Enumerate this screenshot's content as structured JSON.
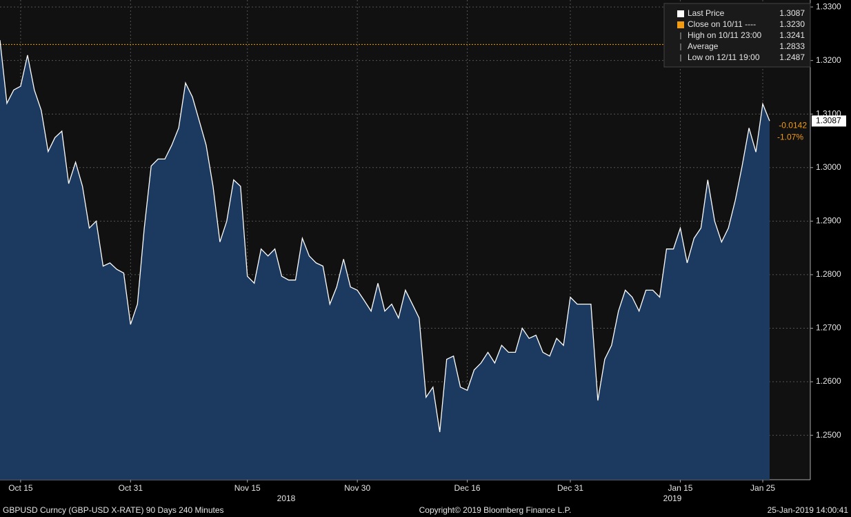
{
  "chart_data": {
    "type": "area",
    "categories": [
      null,
      null,
      null,
      "Oct 15",
      null,
      null,
      null,
      null,
      null,
      null,
      null,
      null,
      null,
      null,
      null,
      null,
      null,
      null,
      null,
      "Oct 31",
      null,
      null,
      null,
      null,
      null,
      null,
      null,
      null,
      null,
      null,
      null,
      null,
      null,
      null,
      null,
      null,
      "Nov 15",
      null,
      null,
      null,
      null,
      null,
      null,
      null,
      null,
      null,
      null,
      null,
      null,
      null,
      null,
      null,
      "Nov 30",
      null,
      null,
      null,
      null,
      null,
      null,
      null,
      null,
      null,
      null,
      null,
      null,
      null,
      null,
      null,
      "Dec 16",
      null,
      null,
      null,
      null,
      null,
      null,
      null,
      null,
      null,
      null,
      null,
      null,
      null,
      null,
      "Dec 31",
      null,
      null,
      null,
      null,
      null,
      null,
      null,
      null,
      null,
      null,
      null,
      null,
      null,
      null,
      null,
      "Jan 15",
      null,
      null,
      null,
      null,
      null,
      null,
      null,
      null,
      null,
      null,
      null,
      "Jan 25",
      null
    ],
    "years": [
      "2018",
      "2019"
    ],
    "series": [
      {
        "name": "Last Price",
        "color": "#ffffff",
        "fill": "#1c3a60",
        "values": [
          1.3238,
          1.312,
          1.3145,
          1.3152,
          1.321,
          1.3145,
          1.3107,
          1.303,
          1.3056,
          1.3068,
          1.297,
          1.301,
          1.2965,
          1.2887,
          1.29,
          1.2816,
          1.2822,
          1.281,
          1.2803,
          1.2707,
          1.2745,
          1.2887,
          1.3003,
          1.3016,
          1.3016,
          1.3042,
          1.3074,
          1.3158,
          1.3132,
          1.3087,
          1.3042,
          1.2965,
          1.2861,
          1.29,
          1.2977,
          1.2965,
          1.2797,
          1.2784,
          1.2848,
          1.2835,
          1.2848,
          1.2797,
          1.279,
          1.279,
          1.2868,
          1.2835,
          1.2822,
          1.2816,
          1.2745,
          1.2777,
          1.2829,
          1.2777,
          1.2771,
          1.2752,
          1.2732,
          1.2784,
          1.2732,
          1.2745,
          1.2719,
          1.2771,
          1.2745,
          1.2719,
          1.2571,
          1.259,
          1.2506,
          1.2642,
          1.2648,
          1.259,
          1.2584,
          1.2622,
          1.2635,
          1.2655,
          1.2635,
          1.2668,
          1.2655,
          1.2655,
          1.27,
          1.2681,
          1.2687,
          1.2655,
          1.2648,
          1.2681,
          1.2668,
          1.2758,
          1.2745,
          1.2745,
          1.2745,
          1.2565,
          1.2642,
          1.2668,
          1.2732,
          1.2771,
          1.2758,
          1.2732,
          1.2771,
          1.2771,
          1.2758,
          1.2848,
          1.2848,
          1.2887,
          1.2822,
          1.2868,
          1.2887,
          1.2977,
          1.29,
          1.2861,
          1.2887,
          1.2939,
          1.3003,
          1.3074,
          1.3029,
          1.3119,
          1.3087
        ]
      }
    ],
    "close_level": 1.323,
    "close_color": "#f39c12",
    "ylim": [
      1.2417,
      1.3313
    ],
    "yticks": [
      {
        "value": 1.25,
        "label": "1.2500"
      },
      {
        "value": 1.26,
        "label": "1.2600"
      },
      {
        "value": 1.27,
        "label": "1.2700"
      },
      {
        "value": 1.28,
        "label": "1.2800"
      },
      {
        "value": 1.29,
        "label": "1.2900"
      },
      {
        "value": 1.3,
        "label": "1.3000"
      },
      {
        "value": 1.31,
        "label": "1.3100"
      },
      {
        "value": 1.32,
        "label": "1.3200"
      },
      {
        "value": 1.33,
        "label": "1.3300"
      }
    ],
    "grid": true,
    "legend": [
      {
        "name": "Last Price",
        "value": "1.3087"
      },
      {
        "name": "Close on 10/11 ----",
        "value": "1.3230"
      },
      {
        "name": "High on 10/11 23:00",
        "value": "1.3241"
      },
      {
        "name": "Average",
        "value": "1.2833"
      },
      {
        "name": "Low on 12/11 19:00",
        "value": "1.2487"
      }
    ],
    "last_tag": "1.3087",
    "change": "-0.0142",
    "change_pct": "-1.07%",
    "footer": {
      "left": "GBPUSD Curncy (GBP-USD X-RATE) 90 Days 240 Minutes",
      "center": "Copyright© 2019 Bloomberg Finance L.P.",
      "right": "25-Jan-2019 14:00:41"
    }
  }
}
